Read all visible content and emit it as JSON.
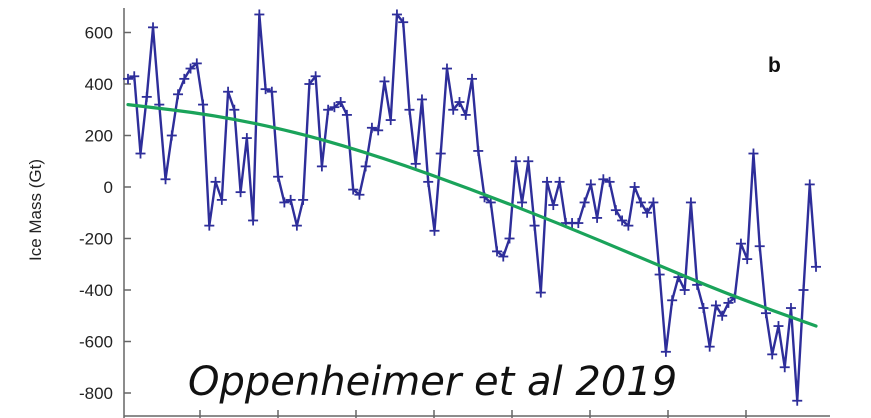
{
  "chart_data": {
    "type": "line",
    "panel_label": "b",
    "ylabel": "Ice Mass (Gt)",
    "xlabel": "",
    "ylim": [
      -850,
      700
    ],
    "yticks": [
      600,
      400,
      200,
      0,
      -200,
      -400,
      -600,
      -800
    ],
    "grid": false,
    "annotation": "Oppenheimer et al 2019",
    "series": [
      {
        "color": "#2e2e9a",
        "marker": "plus",
        "values": [
          420,
          430,
          130,
          350,
          620,
          320,
          30,
          200,
          360,
          420,
          460,
          480,
          320,
          -150,
          20,
          -50,
          370,
          300,
          -20,
          190,
          -130,
          670,
          380,
          370,
          40,
          -60,
          -50,
          -150,
          -50,
          400,
          430,
          80,
          300,
          310,
          330,
          280,
          -10,
          -30,
          80,
          230,
          220,
          410,
          260,
          670,
          640,
          300,
          90,
          340,
          20,
          -170,
          130,
          460,
          300,
          330,
          280,
          420,
          140,
          -40,
          -60,
          -250,
          -270,
          -200,
          100,
          -60,
          100,
          -150,
          -410,
          20,
          -70,
          20,
          -140,
          -140,
          -140,
          -60,
          10,
          -120,
          30,
          20,
          -90,
          -130,
          -150,
          0,
          -60,
          -100,
          -60,
          -340,
          -640,
          -440,
          -350,
          -400,
          -60,
          -380,
          -470,
          -620,
          -460,
          -500,
          -450,
          -430,
          -220,
          -280,
          130,
          -230,
          -490,
          -650,
          -540,
          -700,
          -470,
          -830,
          -400,
          10,
          -310
        ]
      },
      {
        "color": "#1aa35a",
        "marker": "none",
        "values": [
          320,
          280,
          210,
          110,
          -10,
          -140,
          -280,
          -420,
          -540
        ]
      }
    ]
  }
}
